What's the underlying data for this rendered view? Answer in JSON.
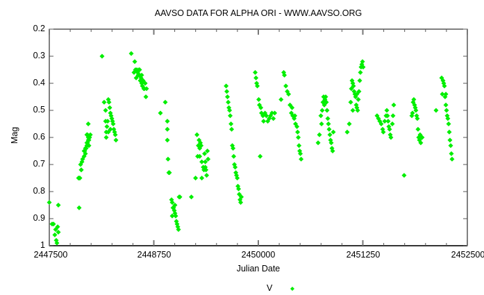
{
  "chart_data": {
    "type": "scatter",
    "title": "AAVSO DATA FOR ALPHA ORI - WWW.AAVSO.ORG",
    "xlabel": "Julian Date",
    "ylabel": "Mag",
    "xlim": [
      2447500,
      2452500
    ],
    "ylim": [
      1,
      0.2
    ],
    "y_inverted": true,
    "grid": false,
    "legend_position": "bottom-center",
    "x_ticks": [
      "2447500",
      "2448750",
      "2450000",
      "2451250",
      "2452500"
    ],
    "y_ticks": [
      "0.2",
      "0.3",
      "0.4",
      "0.5",
      "0.6",
      "0.7",
      "0.8",
      "0.9",
      "1"
    ],
    "series": [
      {
        "name": "V",
        "color": "#00ee00",
        "marker": "diamond",
        "points": [
          [
            2447500,
            0.84
          ],
          [
            2447550,
            0.92
          ],
          [
            2447533,
            0.92
          ],
          [
            2447575,
            0.94
          ],
          [
            2447608,
            0.85
          ],
          [
            2447600,
            0.93
          ],
          [
            2447566,
            0.96
          ],
          [
            2447583,
            0.98
          ],
          [
            2447591,
            0.99
          ],
          [
            2447608,
            0.95
          ],
          [
            2447857,
            0.86
          ],
          [
            2447849,
            0.75
          ],
          [
            2447866,
            0.75
          ],
          [
            2447882,
            0.72
          ],
          [
            2447874,
            0.7
          ],
          [
            2447891,
            0.69
          ],
          [
            2447899,
            0.68
          ],
          [
            2447916,
            0.67
          ],
          [
            2447924,
            0.65
          ],
          [
            2447932,
            0.64
          ],
          [
            2447941,
            0.64
          ],
          [
            2447949,
            0.63
          ],
          [
            2447957,
            0.62
          ],
          [
            2447966,
            0.61
          ],
          [
            2447974,
            0.61
          ],
          [
            2447982,
            0.6
          ],
          [
            2447966,
            0.6
          ],
          [
            2447957,
            0.59
          ],
          [
            2447949,
            0.59
          ],
          [
            2447974,
            0.63
          ],
          [
            2447991,
            0.59
          ],
          [
            2447966,
            0.55
          ],
          [
            2447857,
            0.75
          ],
          [
            2447882,
            0.72
          ],
          [
            2447932,
            0.66
          ],
          [
            2447916,
            0.65
          ],
          [
            2447949,
            0.62
          ],
          [
            2448131,
            0.3
          ],
          [
            2448156,
            0.47
          ],
          [
            2448173,
            0.5
          ],
          [
            2448181,
            0.58
          ],
          [
            2448181,
            0.6
          ],
          [
            2448189,
            0.56
          ],
          [
            2448198,
            0.54
          ],
          [
            2448206,
            0.46
          ],
          [
            2448214,
            0.47
          ],
          [
            2448223,
            0.49
          ],
          [
            2448231,
            0.51
          ],
          [
            2448239,
            0.52
          ],
          [
            2448248,
            0.53
          ],
          [
            2448256,
            0.54
          ],
          [
            2448264,
            0.55
          ],
          [
            2448272,
            0.57
          ],
          [
            2448281,
            0.58
          ],
          [
            2448289,
            0.59
          ],
          [
            2448297,
            0.61
          ],
          [
            2448231,
            0.57
          ],
          [
            2448173,
            0.54
          ],
          [
            2448206,
            0.58
          ],
          [
            2448480,
            0.29
          ],
          [
            2448522,
            0.32
          ],
          [
            2448513,
            0.36
          ],
          [
            2448530,
            0.35
          ],
          [
            2448547,
            0.35
          ],
          [
            2448555,
            0.36
          ],
          [
            2448563,
            0.37
          ],
          [
            2448572,
            0.35
          ],
          [
            2448580,
            0.37
          ],
          [
            2448588,
            0.39
          ],
          [
            2448597,
            0.38
          ],
          [
            2448605,
            0.4
          ],
          [
            2448613,
            0.41
          ],
          [
            2448622,
            0.39
          ],
          [
            2448630,
            0.42
          ],
          [
            2448638,
            0.42
          ],
          [
            2448647,
            0.4
          ],
          [
            2448655,
            0.45
          ],
          [
            2448539,
            0.38
          ],
          [
            2448663,
            0.42
          ],
          [
            2448580,
            0.35
          ],
          [
            2448605,
            0.37
          ],
          [
            2448829,
            0.51
          ],
          [
            2448887,
            0.47
          ],
          [
            2448912,
            0.54
          ],
          [
            2448912,
            0.57
          ],
          [
            2448912,
            0.61
          ],
          [
            2448920,
            0.68
          ],
          [
            2448929,
            0.73
          ],
          [
            2448937,
            0.73
          ],
          [
            2448962,
            0.83
          ],
          [
            2448970,
            0.84
          ],
          [
            2448979,
            0.86
          ],
          [
            2448987,
            0.86
          ],
          [
            2448995,
            0.87
          ],
          [
            2449003,
            0.88
          ],
          [
            2449012,
            0.89
          ],
          [
            2449020,
            0.91
          ],
          [
            2449028,
            0.92
          ],
          [
            2449037,
            0.93
          ],
          [
            2449045,
            0.94
          ],
          [
            2448970,
            0.89
          ],
          [
            2449003,
            0.85
          ],
          [
            2449062,
            0.82
          ],
          [
            2449053,
            0.82
          ],
          [
            2449199,
            0.82
          ],
          [
            2449249,
            0.75
          ],
          [
            2449266,
            0.59
          ],
          [
            2449282,
            0.63
          ],
          [
            2449291,
            0.61
          ],
          [
            2449299,
            0.64
          ],
          [
            2449307,
            0.62
          ],
          [
            2449316,
            0.63
          ],
          [
            2449299,
            0.67
          ],
          [
            2449324,
            0.69
          ],
          [
            2449341,
            0.71
          ],
          [
            2449349,
            0.72
          ],
          [
            2449357,
            0.66
          ],
          [
            2449366,
            0.69
          ],
          [
            2449374,
            0.72
          ],
          [
            2449382,
            0.74
          ],
          [
            2449391,
            0.65
          ],
          [
            2449399,
            0.68
          ],
          [
            2449366,
            0.71
          ],
          [
            2449274,
            0.67
          ],
          [
            2449324,
            0.75
          ],
          [
            2449615,
            0.41
          ],
          [
            2449623,
            0.43
          ],
          [
            2449631,
            0.45
          ],
          [
            2449640,
            0.47
          ],
          [
            2449648,
            0.49
          ],
          [
            2449656,
            0.5
          ],
          [
            2449664,
            0.52
          ],
          [
            2449673,
            0.55
          ],
          [
            2449681,
            0.57
          ],
          [
            2449689,
            0.63
          ],
          [
            2449698,
            0.64
          ],
          [
            2449706,
            0.67
          ],
          [
            2449714,
            0.7
          ],
          [
            2449723,
            0.71
          ],
          [
            2449731,
            0.73
          ],
          [
            2449739,
            0.74
          ],
          [
            2449748,
            0.75
          ],
          [
            2449756,
            0.78
          ],
          [
            2449764,
            0.79
          ],
          [
            2449772,
            0.81
          ],
          [
            2449781,
            0.83
          ],
          [
            2449789,
            0.84
          ],
          [
            2449797,
            0.82
          ],
          [
            2449963,
            0.36
          ],
          [
            2449972,
            0.38
          ],
          [
            2449980,
            0.4
          ],
          [
            2449988,
            0.41
          ],
          [
            2450005,
            0.46
          ],
          [
            2450013,
            0.48
          ],
          [
            2450030,
            0.49
          ],
          [
            2450038,
            0.51
          ],
          [
            2450055,
            0.52
          ],
          [
            2450063,
            0.54
          ],
          [
            2450080,
            0.51
          ],
          [
            2450096,
            0.52
          ],
          [
            2450113,
            0.54
          ],
          [
            2450130,
            0.53
          ],
          [
            2450146,
            0.52
          ],
          [
            2450163,
            0.51
          ],
          [
            2450180,
            0.53
          ],
          [
            2450196,
            0.51
          ],
          [
            2450022,
            0.67
          ],
          [
            2450272,
            0.46
          ],
          [
            2450304,
            0.36
          ],
          [
            2450312,
            0.37
          ],
          [
            2450329,
            0.41
          ],
          [
            2450346,
            0.43
          ],
          [
            2450362,
            0.44
          ],
          [
            2450379,
            0.48
          ],
          [
            2450395,
            0.51
          ],
          [
            2450412,
            0.52
          ],
          [
            2450429,
            0.53
          ],
          [
            2450445,
            0.55
          ],
          [
            2450462,
            0.56
          ],
          [
            2450470,
            0.58
          ],
          [
            2450478,
            0.6
          ],
          [
            2450487,
            0.63
          ],
          [
            2450495,
            0.65
          ],
          [
            2450503,
            0.66
          ],
          [
            2450512,
            0.68
          ],
          [
            2450404,
            0.49
          ],
          [
            2450437,
            0.52
          ],
          [
            2450715,
            0.62
          ],
          [
            2450731,
            0.59
          ],
          [
            2450748,
            0.52
          ],
          [
            2450764,
            0.5
          ],
          [
            2450773,
            0.47
          ],
          [
            2450781,
            0.45
          ],
          [
            2450789,
            0.48
          ],
          [
            2450797,
            0.46
          ],
          [
            2450806,
            0.45
          ],
          [
            2450814,
            0.47
          ],
          [
            2450822,
            0.5
          ],
          [
            2450831,
            0.53
          ],
          [
            2450839,
            0.55
          ],
          [
            2450847,
            0.57
          ],
          [
            2450856,
            0.59
          ],
          [
            2450864,
            0.61
          ],
          [
            2450872,
            0.62
          ],
          [
            2450881,
            0.64
          ],
          [
            2450889,
            0.65
          ],
          [
            2450756,
            0.55
          ],
          [
            2450897,
            0.58
          ],
          [
            2451063,
            0.58
          ],
          [
            2451088,
            0.55
          ],
          [
            2451105,
            0.47
          ],
          [
            2451113,
            0.42
          ],
          [
            2451121,
            0.39
          ],
          [
            2451130,
            0.4
          ],
          [
            2451138,
            0.41
          ],
          [
            2451146,
            0.43
          ],
          [
            2451155,
            0.44
          ],
          [
            2451163,
            0.45
          ],
          [
            2451171,
            0.48
          ],
          [
            2451179,
            0.49
          ],
          [
            2451188,
            0.5
          ],
          [
            2451196,
            0.46
          ],
          [
            2451204,
            0.43
          ],
          [
            2451213,
            0.39
          ],
          [
            2451221,
            0.36
          ],
          [
            2451229,
            0.34
          ],
          [
            2451238,
            0.33
          ],
          [
            2451246,
            0.32
          ],
          [
            2451254,
            0.34
          ],
          [
            2451130,
            0.5
          ],
          [
            2451179,
            0.44
          ]
        ],
        "points_2": [
          [
            2451420,
            0.52
          ],
          [
            2451437,
            0.53
          ],
          [
            2451453,
            0.54
          ],
          [
            2451470,
            0.55
          ],
          [
            2451487,
            0.57
          ],
          [
            2451495,
            0.58
          ],
          [
            2451512,
            0.54
          ],
          [
            2451528,
            0.52
          ],
          [
            2451537,
            0.5
          ],
          [
            2451545,
            0.52
          ],
          [
            2451553,
            0.54
          ],
          [
            2451561,
            0.56
          ],
          [
            2451570,
            0.57
          ],
          [
            2451578,
            0.59
          ],
          [
            2451586,
            0.6
          ],
          [
            2451603,
            0.55
          ],
          [
            2451620,
            0.48
          ],
          [
            2451611,
            0.52
          ],
          [
            2451744,
            0.74
          ],
          [
            2451844,
            0.51
          ],
          [
            2451852,
            0.47
          ],
          [
            2451860,
            0.46
          ],
          [
            2451869,
            0.48
          ],
          [
            2451877,
            0.49
          ],
          [
            2451885,
            0.5
          ],
          [
            2451894,
            0.52
          ],
          [
            2451902,
            0.53
          ],
          [
            2451910,
            0.57
          ],
          [
            2451918,
            0.6
          ],
          [
            2451927,
            0.61
          ],
          [
            2451935,
            0.59
          ],
          [
            2451943,
            0.62
          ],
          [
            2451952,
            0.6
          ],
          [
            2451960,
            0.6
          ],
          [
            2451836,
            0.52
          ],
          [
            2452126,
            0.5
          ],
          [
            2452193,
            0.38
          ],
          [
            2452209,
            0.39
          ],
          [
            2452218,
            0.4
          ],
          [
            2452226,
            0.41
          ],
          [
            2452234,
            0.45
          ],
          [
            2452243,
            0.48
          ],
          [
            2452251,
            0.5
          ],
          [
            2452259,
            0.52
          ],
          [
            2452267,
            0.53
          ],
          [
            2452276,
            0.55
          ],
          [
            2452284,
            0.58
          ],
          [
            2452292,
            0.61
          ],
          [
            2452301,
            0.63
          ],
          [
            2452309,
            0.66
          ],
          [
            2452317,
            0.68
          ],
          [
            2452201,
            0.44
          ],
          [
            2452243,
            0.44
          ]
        ]
      }
    ]
  },
  "legend": {
    "label": "V"
  }
}
